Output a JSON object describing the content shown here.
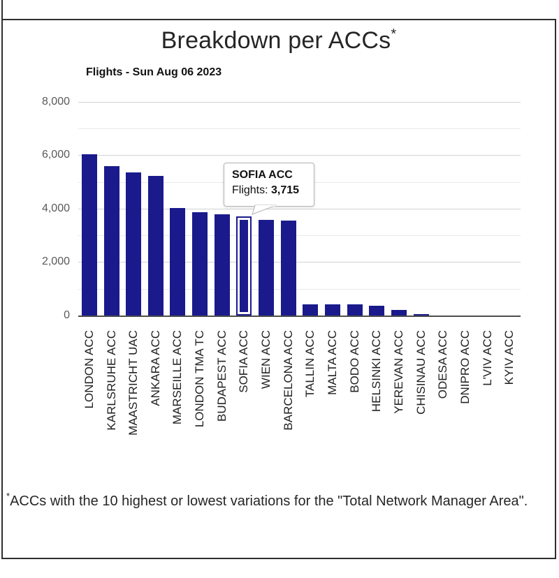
{
  "page": {
    "title": "Breakdown per ACCs",
    "title_sup": "*",
    "footnote_sup": "*",
    "footnote": "ACCs with the 10 highest or lowest variations for the \"Total Network Manager Area\"."
  },
  "tooltip": {
    "title": "SOFIA ACC",
    "metric_label": "Flights:",
    "value": "3,715"
  },
  "chart_data": {
    "type": "bar",
    "title": "Breakdown per ACCs*",
    "subtitle": "Flights - Sun Aug 06 2023",
    "categories": [
      "LONDON ACC",
      "KARLSRUHE ACC",
      "MAASTRICHT UAC",
      "ANKARA ACC",
      "MARSEILLE ACC",
      "LONDON TMA TC",
      "BUDAPEST ACC",
      "SOFIA ACC",
      "WIEN ACC",
      "BARCELONA ACC",
      "TALLIN ACC",
      "MALTA ACC",
      "BODO ACC",
      "HELSINKI ACC",
      "YEREVAN ACC",
      "CHISINAU ACC",
      "ODESA ACC",
      "DNIPRO ACC",
      "L'VIV ACC",
      "KYIV ACC"
    ],
    "values": [
      6040,
      5590,
      5350,
      5230,
      4030,
      3860,
      3780,
      3715,
      3570,
      3540,
      430,
      420,
      415,
      370,
      210,
      50,
      0,
      0,
      0,
      0
    ],
    "xlabel": "",
    "ylabel": "",
    "ylim": [
      0,
      8000
    ],
    "y_major_step": 2000,
    "y_minor_step": 1000,
    "grid": true,
    "legend": false,
    "bar_color": "#1a1a8c",
    "grid_major_color": "#d2d2d2",
    "grid_minor_color": "#e9e9e9",
    "axis_color": "#4d4d4d",
    "highlighted_index": 7,
    "highlighted_category": "SOFIA ACC",
    "highlighted_value": 3715
  }
}
